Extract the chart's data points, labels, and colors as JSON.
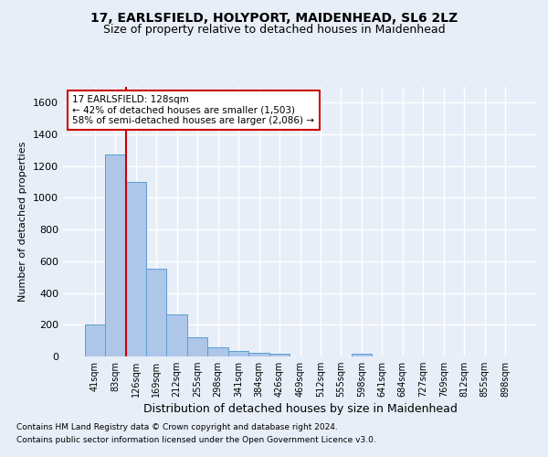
{
  "title1": "17, EARLSFIELD, HOLYPORT, MAIDENHEAD, SL6 2LZ",
  "title2": "Size of property relative to detached houses in Maidenhead",
  "xlabel": "Distribution of detached houses by size in Maidenhead",
  "ylabel": "Number of detached properties",
  "footer1": "Contains HM Land Registry data © Crown copyright and database right 2024.",
  "footer2": "Contains public sector information licensed under the Open Government Licence v3.0.",
  "bar_labels": [
    "41sqm",
    "83sqm",
    "126sqm",
    "169sqm",
    "212sqm",
    "255sqm",
    "298sqm",
    "341sqm",
    "384sqm",
    "426sqm",
    "469sqm",
    "512sqm",
    "555sqm",
    "598sqm",
    "641sqm",
    "684sqm",
    "727sqm",
    "769sqm",
    "812sqm",
    "855sqm",
    "898sqm"
  ],
  "bar_values": [
    200,
    1275,
    1100,
    555,
    265,
    120,
    55,
    35,
    25,
    15,
    0,
    0,
    0,
    15,
    0,
    0,
    0,
    0,
    0,
    0,
    0
  ],
  "bar_color": "#aec6e8",
  "bar_edge_color": "#5a9fd4",
  "vline_x_index": 1.5,
  "vline_color": "#cc0000",
  "annotation_text": "17 EARLSFIELD: 128sqm\n← 42% of detached houses are smaller (1,503)\n58% of semi-detached houses are larger (2,086) →",
  "annotation_box_color": "#ffffff",
  "annotation_border_color": "#cc0000",
  "ylim": [
    0,
    1700
  ],
  "yticks": [
    0,
    200,
    400,
    600,
    800,
    1000,
    1200,
    1400,
    1600
  ],
  "bg_color": "#e8eef8",
  "plot_bg_color": "#e8eef8",
  "grid_color": "#ffffff",
  "title1_fontsize": 10,
  "title2_fontsize": 9,
  "footer_fontsize": 6.5,
  "xlabel_fontsize": 9,
  "ylabel_fontsize": 8,
  "tick_fontsize": 8,
  "xtick_fontsize": 7
}
